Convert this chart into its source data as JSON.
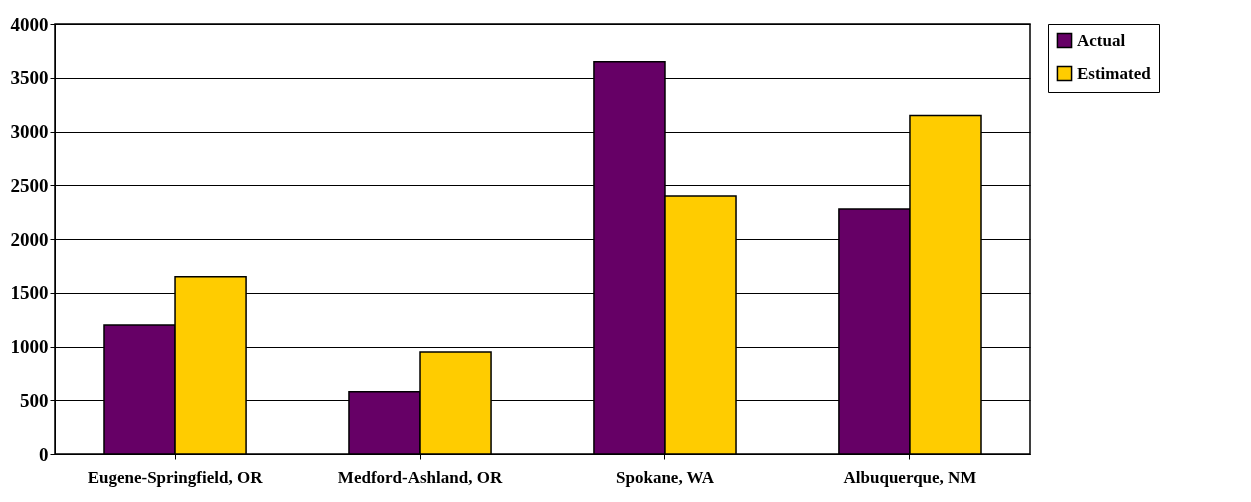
{
  "chart_data": {
    "type": "bar",
    "categories": [
      "Eugene-Springfield, OR",
      "Medford-Ashland, OR",
      "Spokane, WA",
      "Albuquerque, NM"
    ],
    "series": [
      {
        "name": "Actual",
        "color": "#660066",
        "values": [
          1200,
          580,
          3650,
          2280
        ]
      },
      {
        "name": "Estimated",
        "color": "#ffcc00",
        "values": [
          1650,
          950,
          2400,
          3150
        ]
      }
    ],
    "ylim": [
      0,
      4000
    ],
    "yticks": [
      0,
      500,
      1000,
      1500,
      2000,
      2500,
      3000,
      3500,
      4000
    ],
    "grid": "y",
    "legend": "right"
  }
}
